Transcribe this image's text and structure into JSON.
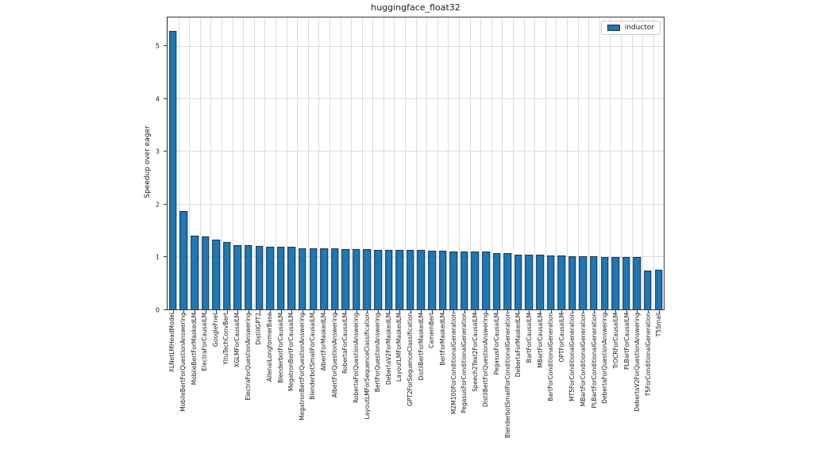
{
  "title": "huggingface_float32",
  "legend": {
    "label": "inductor",
    "swatch_color": "#1f77b4"
  },
  "chart_data": {
    "type": "bar",
    "title": "huggingface_float32",
    "xlabel": "",
    "ylabel": "Speedup over eager",
    "ylim": [
      0,
      5.56
    ],
    "yticks": [
      0,
      1,
      2,
      3,
      4,
      5
    ],
    "grid": true,
    "legend_position": "upper right",
    "categories": [
      "XLNetLMHeadModel",
      "MobileBertForQuestionAnswering",
      "MobileBertForMaskedLM",
      "ElectraForCausalLM",
      "GoogleFnet",
      "YituTechConvBert",
      "XGLMForCausalLM",
      "ElectraForQuestionAnswering",
      "DistillGPT2",
      "AllenaiLongformerBase",
      "BlenderbotForCausalLM",
      "MegatronBertForCausalLM",
      "MegatronBertForQuestionAnswering",
      "BlenderbotSmallForCausalLM",
      "AlbertForMaskedLM",
      "AlbertForQuestionAnswering",
      "RobertaForCausalLM",
      "RobertaForQuestionAnswering",
      "LayoutLMForSequenceClassification",
      "BertForQuestionAnswering",
      "DebertaV2ForMaskedLM",
      "LayoutLMForMaskedLM",
      "GPT2ForSequenceClassification",
      "DistilBertForMaskedLM",
      "CamemBert",
      "BertForMaskedLM",
      "M2M100ForConditionalGeneration",
      "PegasusForConditionalGeneration",
      "Speech2Text2ForCausalLM",
      "DistilBertForQuestionAnswering",
      "PegasusForCausalLM",
      "BlenderbotSmallForConditionalGeneration",
      "DebertaForMaskedLM",
      "BartForCausalLM",
      "MBartForCausalLM",
      "BartForConditionalGeneration",
      "OPTForCausalLM",
      "MT5ForConditionalGeneration",
      "MBartForConditionalGeneration",
      "PLBartForConditionalGeneration",
      "DebertaForQuestionAnswering",
      "TrOCRForCausalLM",
      "PLBartForCausalLM",
      "DebertaV2ForQuestionAnswering",
      "T5ForConditionalGeneration",
      "T5Small"
    ],
    "series": [
      {
        "name": "inductor",
        "color": "#1f77b4",
        "values": [
          5.3,
          1.88,
          1.4,
          1.39,
          1.33,
          1.29,
          1.22,
          1.22,
          1.21,
          1.2,
          1.19,
          1.19,
          1.17,
          1.16,
          1.16,
          1.16,
          1.15,
          1.15,
          1.15,
          1.14,
          1.14,
          1.13,
          1.13,
          1.13,
          1.12,
          1.12,
          1.11,
          1.11,
          1.1,
          1.1,
          1.08,
          1.07,
          1.05,
          1.04,
          1.04,
          1.03,
          1.03,
          1.02,
          1.01,
          1.01,
          1.0,
          1.0,
          1.0,
          0.99,
          0.74,
          0.75
        ]
      }
    ]
  }
}
